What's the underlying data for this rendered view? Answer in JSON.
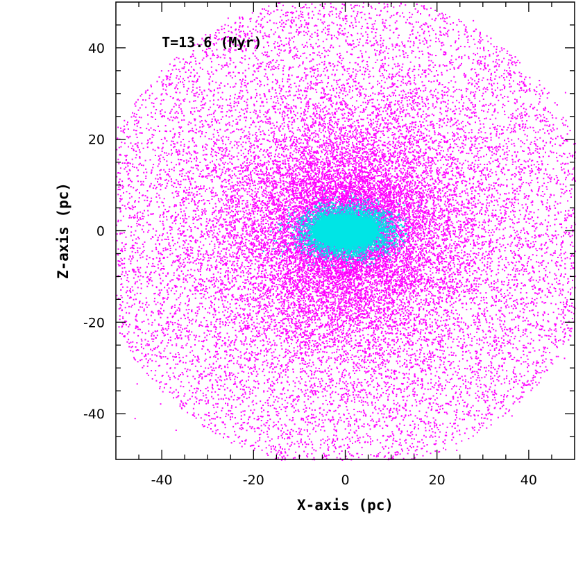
{
  "chart_data": {
    "type": "scatter",
    "title": "",
    "annotation": "T=13.6 (Myr)",
    "xlabel": "X-axis (pc)",
    "ylabel": "Z-axis (pc)",
    "xlim": [
      -50,
      50
    ],
    "ylim": [
      -50,
      50
    ],
    "xticks": [
      -40,
      -20,
      0,
      20,
      40
    ],
    "yticks": [
      -40,
      -20,
      0,
      20,
      40
    ],
    "xtick_labels": [
      "-40",
      "-20",
      "0",
      "20",
      "40"
    ],
    "ytick_labels": [
      "-40",
      "-20",
      "0",
      "20",
      "40"
    ],
    "minor_tick_step": 5,
    "grid": false,
    "series": [
      {
        "color": "#ff00ff",
        "distribution": "broad halo of particles filling the field, density peaking at the centre",
        "center": [
          0,
          0
        ],
        "approx_extent_pc": 50
      },
      {
        "color": "#00e5e5",
        "distribution": "dense compact core elongated along the X-axis",
        "center": [
          0,
          0
        ],
        "approx_semi_axes_pc": [
          8,
          4
        ]
      }
    ]
  }
}
